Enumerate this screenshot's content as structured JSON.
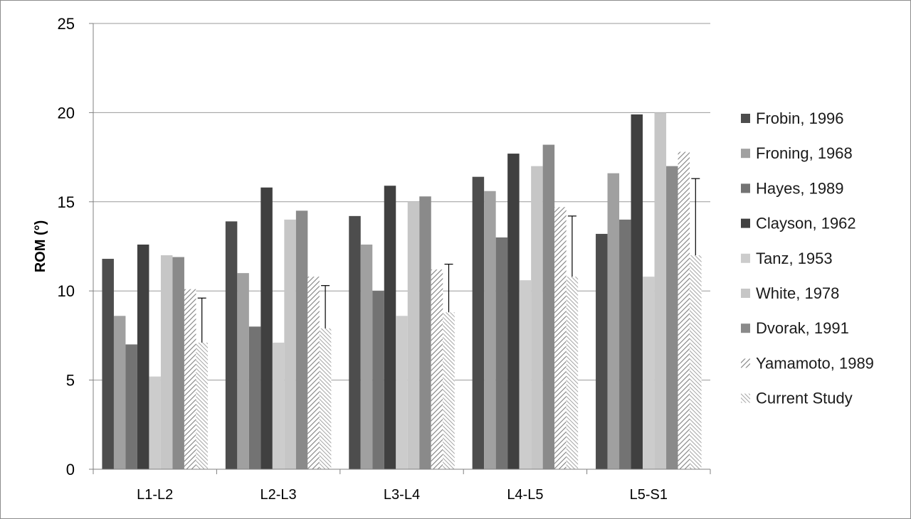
{
  "chart_data": {
    "type": "bar",
    "title": "",
    "xlabel": "",
    "ylabel": "ROM (°)",
    "ylim": [
      0,
      25
    ],
    "yticks": [
      0,
      5,
      10,
      15,
      20,
      25
    ],
    "grid": true,
    "legend_position": "right",
    "categories": [
      "L1-L2",
      "L2-L3",
      "L3-L4",
      "L4-L5",
      "L5-S1"
    ],
    "series": [
      {
        "name": "Frobin, 1996",
        "values": [
          11.8,
          13.9,
          14.2,
          16.4,
          13.2
        ],
        "color": "#4d4d4d",
        "pattern": "solid"
      },
      {
        "name": "Froning, 1968",
        "values": [
          8.6,
          11.0,
          12.6,
          15.6,
          16.6
        ],
        "color": "#a0a0a0",
        "pattern": "solid"
      },
      {
        "name": "Hayes, 1989",
        "values": [
          7.0,
          8.0,
          10.0,
          13.0,
          14.0
        ],
        "color": "#737373",
        "pattern": "solid"
      },
      {
        "name": "Clayson, 1962",
        "values": [
          12.6,
          15.8,
          15.9,
          17.7,
          19.9
        ],
        "color": "#404040",
        "pattern": "solid"
      },
      {
        "name": "Tanz, 1953",
        "values": [
          5.2,
          7.1,
          8.6,
          10.6,
          10.8
        ],
        "color": "#cccccc",
        "pattern": "solid"
      },
      {
        "name": "White, 1978",
        "values": [
          12.0,
          14.0,
          15.0,
          17.0,
          20.0
        ],
        "color": "#c6c6c6",
        "pattern": "solid"
      },
      {
        "name": "Dvorak, 1991",
        "values": [
          11.9,
          14.5,
          15.3,
          18.2,
          17.0
        ],
        "color": "#8a8a8a",
        "pattern": "solid"
      },
      {
        "name": "Yamamoto, 1989",
        "values": [
          10.1,
          10.8,
          11.2,
          14.7,
          17.8
        ],
        "color": "#888888",
        "pattern": "hatch-up"
      },
      {
        "name": "Current Study",
        "values": [
          7.1,
          7.9,
          8.8,
          10.8,
          12.0
        ],
        "error": [
          2.5,
          2.4,
          2.7,
          3.4,
          4.3
        ],
        "color": "#999999",
        "pattern": "hatch-down"
      }
    ]
  }
}
